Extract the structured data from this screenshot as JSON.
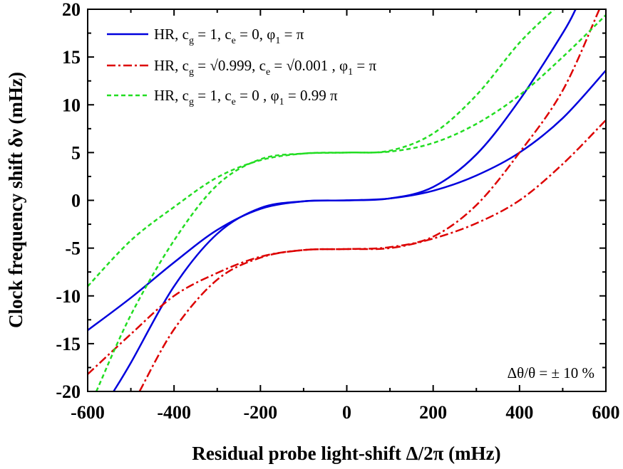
{
  "chart_data": {
    "type": "line",
    "xlabel": "Residual probe light-shift Δ/2π (mHz)",
    "ylabel": "Clock frequency shift δν (mHz)",
    "xlim": [
      -600,
      600
    ],
    "ylim": [
      -20,
      20
    ],
    "xticks": [
      -600,
      -400,
      -200,
      0,
      200,
      400,
      600
    ],
    "yticks": [
      -20,
      -15,
      -10,
      -5,
      0,
      5,
      10,
      15,
      20
    ],
    "grid": false,
    "legend_position": "top-left",
    "annotation": "Δθ/θ = ± 10 %",
    "series": [
      {
        "name": "HR, c_g = 1, c_e = 0, φ_1 = π",
        "color": "#0000dd",
        "dash": "solid",
        "curves": [
          {
            "x": [
              -600,
              -500,
              -400,
              -300,
              -200,
              -100,
              0,
              100,
              200,
              300,
              400,
              500,
              600
            ],
            "y": [
              -13.6,
              -10.2,
              -6.5,
              -3.1,
              -0.9,
              -0.1,
              0,
              0.2,
              1.0,
              2.6,
              5.0,
              8.6,
              13.6
            ]
          },
          {
            "x": [
              -540,
              -500,
              -400,
              -300,
              -200,
              -100,
              0,
              100,
              200,
              300,
              400,
              500,
              530
            ],
            "y": [
              -20,
              -17.0,
              -9.0,
              -3.5,
              -0.8,
              -0.1,
              0,
              0.2,
              1.4,
              4.8,
              10.5,
              17.5,
              20
            ]
          }
        ]
      },
      {
        "name": "HR, c_g = √0.999, c_e = √0.001 , φ_1 = π",
        "color": "#dd0000",
        "dash": "dashdot",
        "curves": [
          {
            "x": [
              -600,
              -500,
              -400,
              -300,
              -200,
              -100,
              0,
              100,
              200,
              300,
              400,
              500,
              600
            ],
            "y": [
              -18.2,
              -14.0,
              -10.0,
              -7.6,
              -5.9,
              -5.2,
              -5.1,
              -5.0,
              -4.0,
              -2.4,
              0.0,
              3.8,
              8.4
            ]
          },
          {
            "x": [
              -480,
              -400,
              -300,
              -200,
              -100,
              0,
              100,
              200,
              300,
              400,
              500,
              585
            ],
            "y": [
              -20,
              -13.5,
              -8.3,
              -6.0,
              -5.2,
              -5.1,
              -4.9,
              -3.8,
              -0.5,
              5.0,
              11.5,
              20
            ]
          }
        ]
      },
      {
        "name": "HR, c_g = 1, c_e = 0 , φ_1 = 0.99 π",
        "color": "#22dd22",
        "dash": "dashed",
        "curves": [
          {
            "x": [
              -600,
              -500,
              -400,
              -300,
              -200,
              -100,
              0,
              100,
              200,
              300,
              400,
              500,
              600
            ],
            "y": [
              -9.0,
              -4.2,
              -0.7,
              2.4,
              4.2,
              4.9,
              5.0,
              5.1,
              6.0,
              8.0,
              11.0,
              15.0,
              19.4
            ]
          },
          {
            "x": [
              -580,
              -500,
              -400,
              -300,
              -200,
              -100,
              0,
              100,
              200,
              300,
              400,
              480
            ],
            "y": [
              -20,
              -12.0,
              -4.2,
              1.6,
              4.3,
              4.9,
              5.0,
              5.2,
              7.0,
              11.0,
              16.5,
              20
            ]
          }
        ]
      }
    ]
  },
  "legend": {
    "items": [
      {
        "prefix": "HR, c",
        "s1": "g",
        "mid1": " = 1, c",
        "s2": "e",
        "mid2": " = 0, φ",
        "s3": "1",
        "suffix": " = π"
      },
      {
        "prefix": "HR, c",
        "s1": "g",
        "mid1": " = √0.999, c",
        "s2": "e",
        "mid2": " = √0.001 , φ",
        "s3": "1",
        "suffix": " = π"
      },
      {
        "prefix": "HR, c",
        "s1": "g",
        "mid1": " = 1, c",
        "s2": "e",
        "mid2": " = 0 , φ",
        "s3": "1",
        "suffix": " = 0.99 π"
      }
    ]
  }
}
